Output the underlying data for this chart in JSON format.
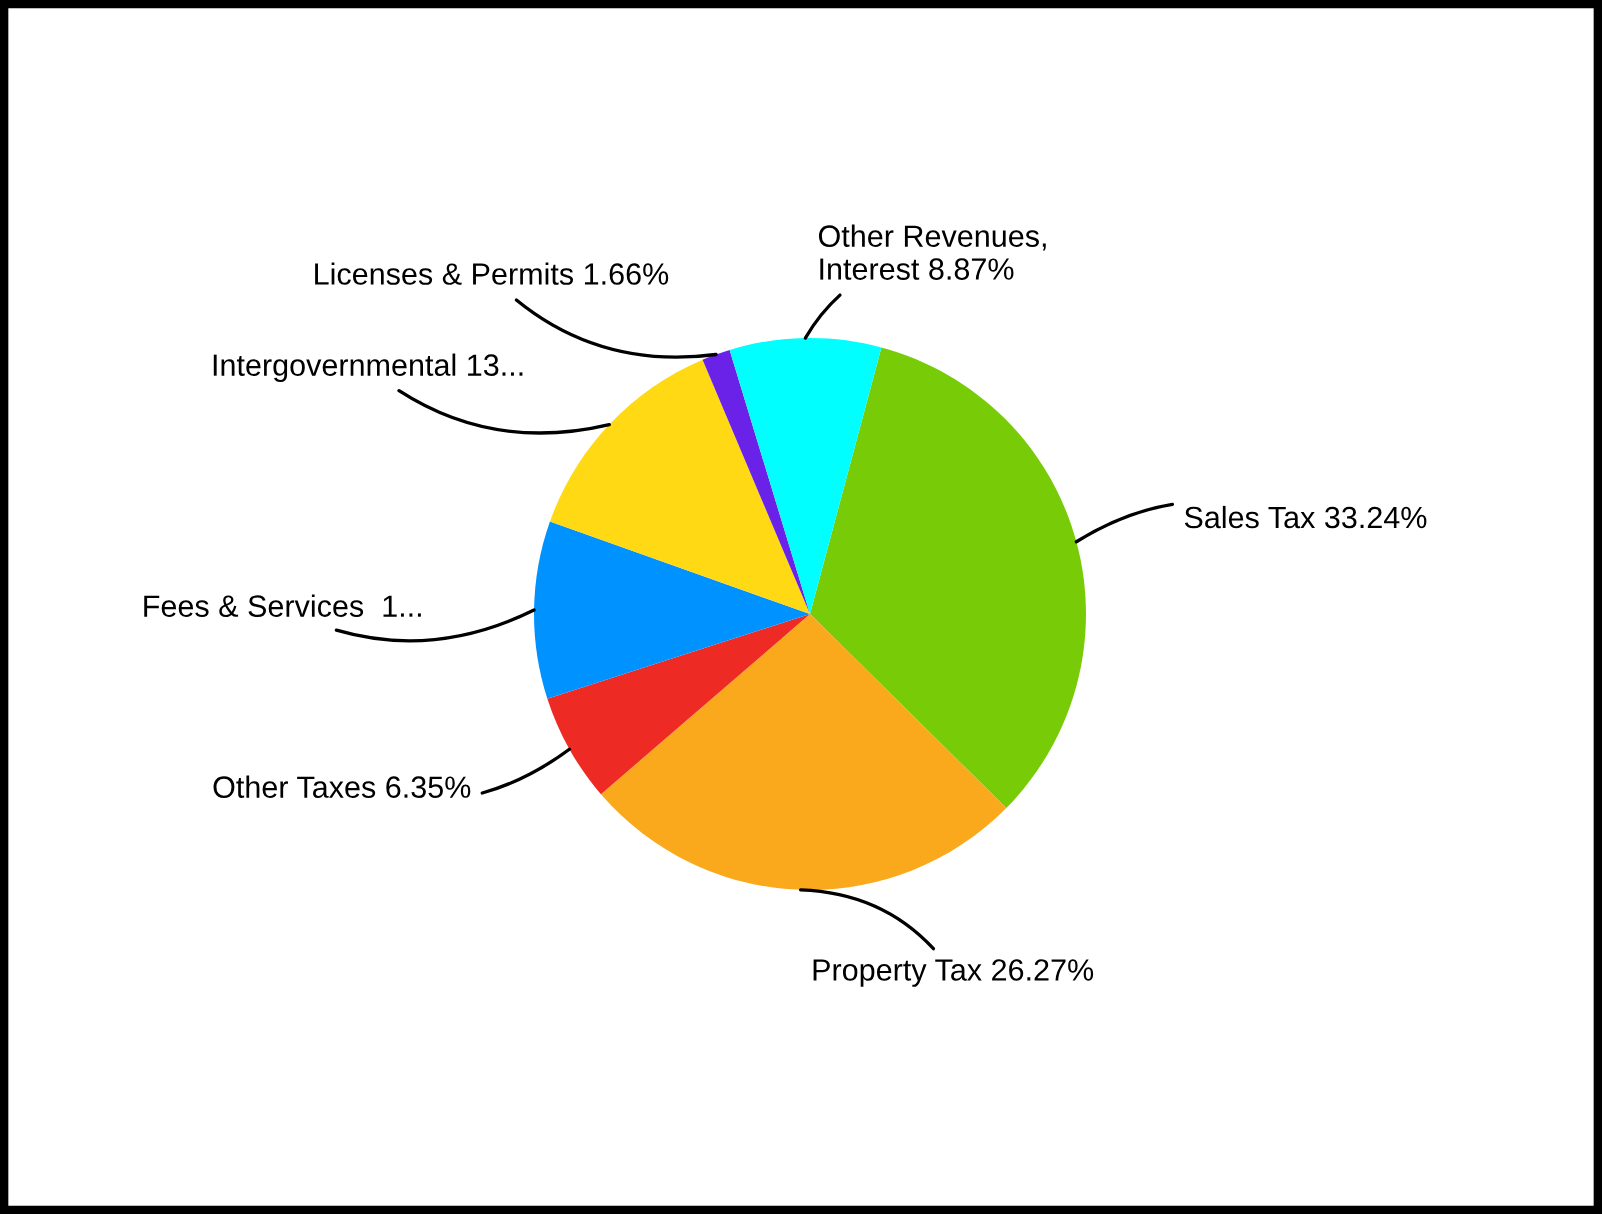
{
  "chart_data": {
    "type": "pie",
    "categories": [
      "Sales Tax",
      "Property Tax",
      "Other Taxes",
      "Fees & Services",
      "Intergovernmental",
      "Licenses & Permits",
      "Other Revenues,\nInterest"
    ],
    "values": [
      33.24,
      26.27,
      6.35,
      10.41,
      13.2,
      1.66,
      8.87
    ],
    "value_labels": [
      "33.24%",
      "26.27%",
      "6.35%",
      " 1...",
      "13...",
      "1.66%",
      "8.87%"
    ],
    "colors": [
      "#77cc07",
      "#faa91c",
      "#ee2a24",
      "#0093ff",
      "#ffd914",
      "#6a22e8",
      "#00ffff"
    ],
    "legend": false
  }
}
